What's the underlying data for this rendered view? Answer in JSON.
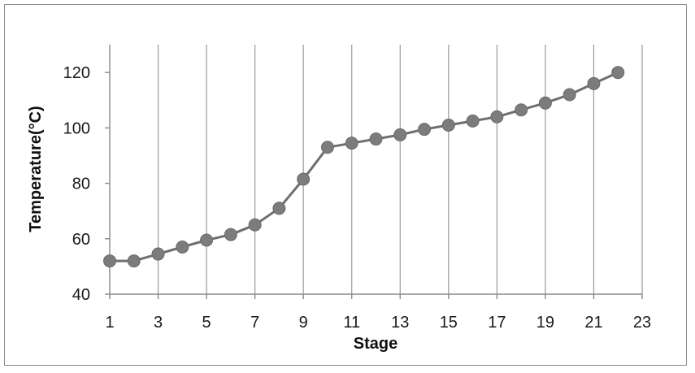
{
  "chart_data": {
    "type": "line",
    "title": "",
    "xlabel": "Stage",
    "ylabel": "Temperature(°C)",
    "xlim": [
      1,
      23
    ],
    "ylim": [
      40,
      130
    ],
    "xticks": [
      1,
      3,
      5,
      7,
      9,
      11,
      13,
      15,
      17,
      19,
      21,
      23
    ],
    "yticks": [
      40,
      60,
      80,
      100,
      120
    ],
    "grid": "vertical",
    "legend": "none",
    "series": [
      {
        "color": "#6f6f6f",
        "marker": "circle",
        "x": [
          1,
          2,
          3,
          4,
          5,
          6,
          7,
          8,
          9,
          10,
          11,
          12,
          13,
          14,
          15,
          16,
          17,
          18,
          19,
          20,
          21,
          22
        ],
        "y": [
          52,
          52,
          54.5,
          57,
          59.5,
          61.5,
          65,
          71,
          81.5,
          93,
          94.5,
          96,
          97.5,
          99.5,
          101,
          102.5,
          104,
          106.5,
          109,
          112,
          116,
          120
        ]
      }
    ]
  }
}
